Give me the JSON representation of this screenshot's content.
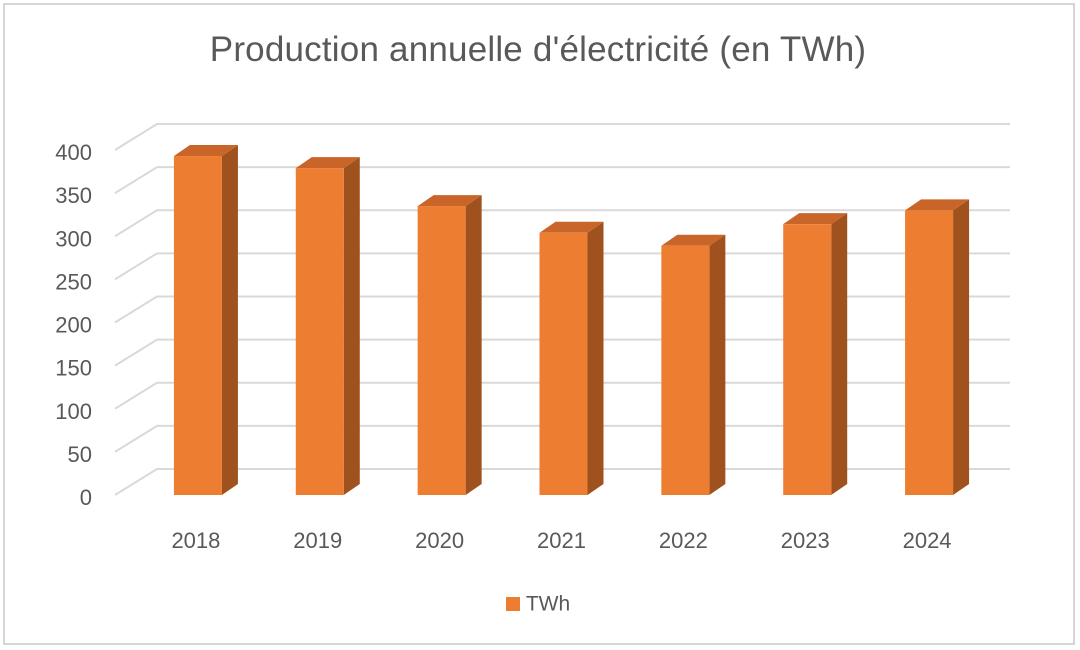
{
  "chart_data": {
    "type": "bar",
    "title": "Production annuelle d'électricité (en TWh)",
    "categories": [
      "2018",
      "2019",
      "2020",
      "2021",
      "2022",
      "2023",
      "2024"
    ],
    "series": [
      {
        "name": "TWh",
        "values": [
          393,
          379,
          335,
          304,
          289,
          314,
          330
        ]
      }
    ],
    "yticks": [
      "0",
      "50",
      "100",
      "150",
      "200",
      "250",
      "300",
      "350",
      "400"
    ],
    "ylim": [
      0,
      400
    ],
    "grid": true,
    "legend_position": "bottom",
    "colors": {
      "front": "#ed7d31",
      "side": "#a0521e",
      "top": "#c96528",
      "grid": "#d9d9d9"
    }
  }
}
